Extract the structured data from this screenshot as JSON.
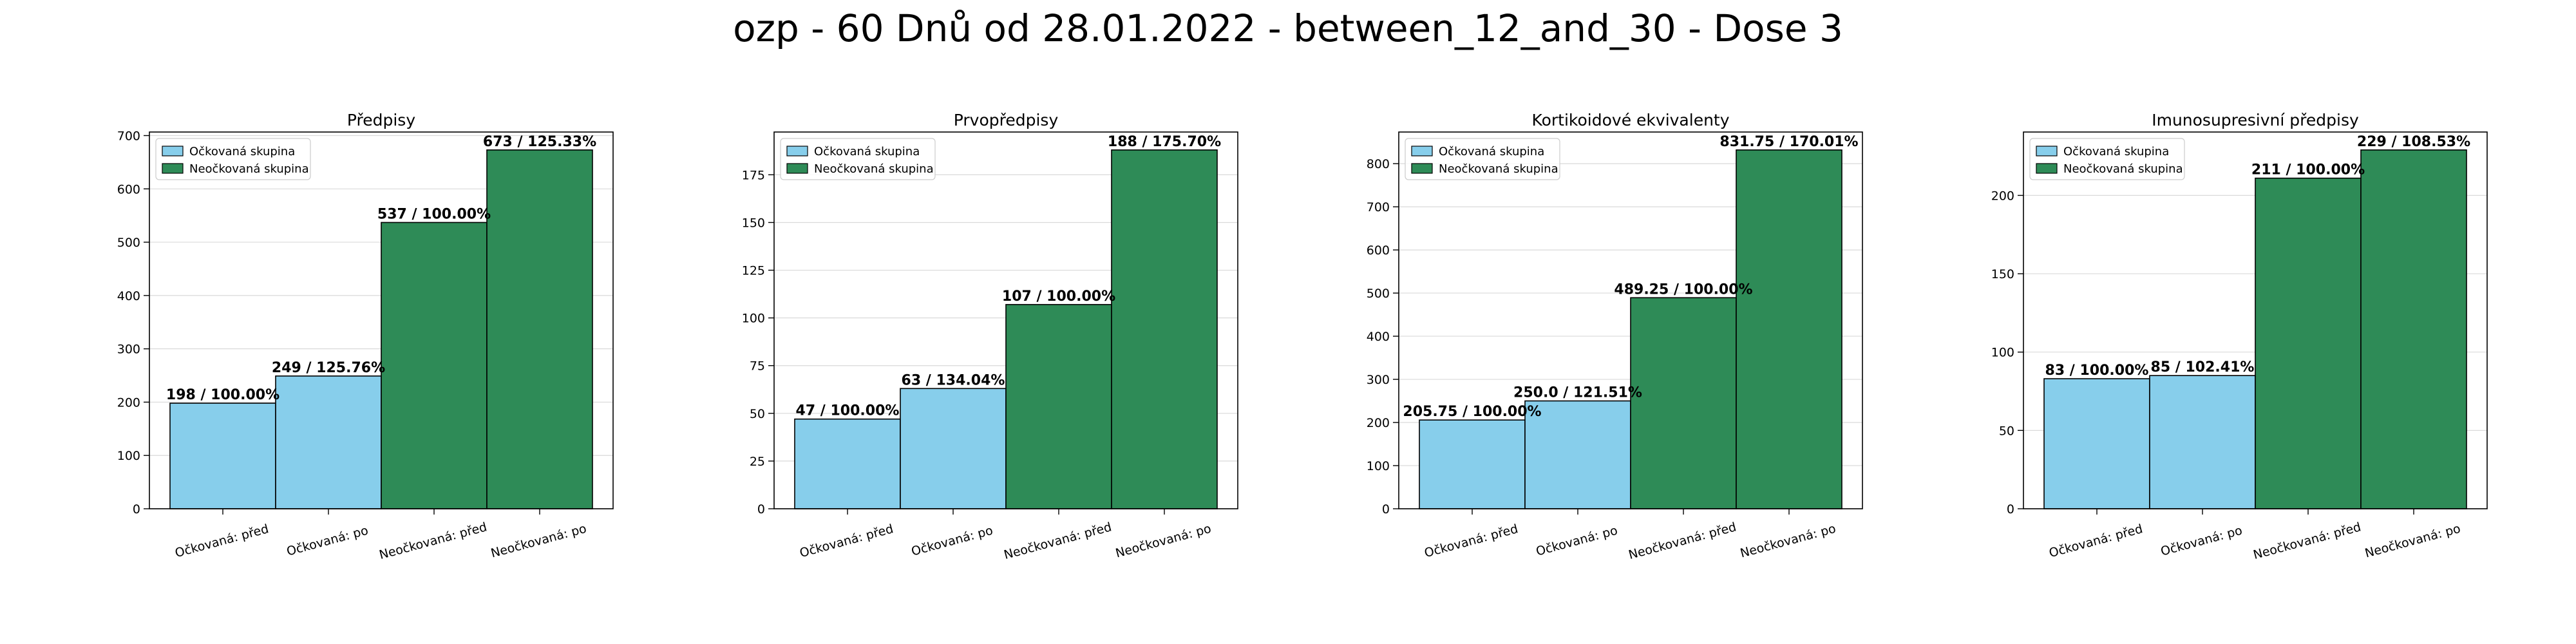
{
  "figure": {
    "title": "ozp - 60 Dnů od 28.01.2022 - between_12_and_30 - Dose 3"
  },
  "colors": {
    "vaccinated": "#87ceeb",
    "unvaccinated": "#2e8b57"
  },
  "chart_data": [
    {
      "type": "bar",
      "title": "Předpisy",
      "categories": [
        "Očkovaná: před",
        "Očkovaná: po",
        "Neočkovaná: před",
        "Neočkovaná: po"
      ],
      "values": [
        198,
        249,
        537,
        673
      ],
      "bar_labels": [
        "198 / 100.00%",
        "249 / 125.76%",
        "537 / 100.00%",
        "673 / 125.33%"
      ],
      "bar_series": [
        0,
        0,
        1,
        1
      ],
      "legend": [
        "Očkovaná skupina",
        "Neočkovaná skupina"
      ],
      "legend_position": "upper-left",
      "ylim": [
        0,
        706.65
      ],
      "yticks": [
        0,
        100,
        200,
        300,
        400,
        500,
        600,
        700
      ],
      "grid": true
    },
    {
      "type": "bar",
      "title": "Prvopředpisy",
      "categories": [
        "Očkovaná: před",
        "Očkovaná: po",
        "Neočkovaná: před",
        "Neočkovaná: po"
      ],
      "values": [
        47,
        63,
        107,
        188
      ],
      "bar_labels": [
        "47 / 100.00%",
        "63 / 134.04%",
        "107 / 100.00%",
        "188 / 175.70%"
      ],
      "bar_series": [
        0,
        0,
        1,
        1
      ],
      "legend": [
        "Očkovaná skupina",
        "Neočkovaná skupina"
      ],
      "legend_position": "upper-left",
      "ylim": [
        0,
        197.4
      ],
      "yticks": [
        0,
        25,
        50,
        75,
        100,
        125,
        150,
        175
      ],
      "grid": true
    },
    {
      "type": "bar",
      "title": "Kortikoidové ekvivalenty",
      "categories": [
        "Očkovaná: před",
        "Očkovaná: po",
        "Neočkovaná: před",
        "Neočkovaná: po"
      ],
      "values": [
        205.75,
        250.0,
        489.25,
        831.75
      ],
      "bar_labels": [
        "205.75 / 100.00%",
        "250.0 / 121.51%",
        "489.25 / 100.00%",
        "831.75 / 170.01%"
      ],
      "bar_series": [
        0,
        0,
        1,
        1
      ],
      "legend": [
        "Očkovaná skupina",
        "Neočkovaná skupina"
      ],
      "legend_position": "upper-left",
      "ylim": [
        0,
        873.34
      ],
      "yticks": [
        0,
        100,
        200,
        300,
        400,
        500,
        600,
        700,
        800
      ],
      "grid": true
    },
    {
      "type": "bar",
      "title": "Imunosupresivní předpisy",
      "categories": [
        "Očkovaná: před",
        "Očkovaná: po",
        "Neočkovaná: před",
        "Neočkovaná: po"
      ],
      "values": [
        83,
        85,
        211,
        229
      ],
      "bar_labels": [
        "83 / 100.00%",
        "85 / 102.41%",
        "211 / 100.00%",
        "229 / 108.53%"
      ],
      "bar_series": [
        0,
        0,
        1,
        1
      ],
      "legend": [
        "Očkovaná skupina",
        "Neočkovaná skupina"
      ],
      "legend_position": "upper-left",
      "ylim": [
        0,
        240.45
      ],
      "yticks": [
        0,
        50,
        100,
        150,
        200
      ],
      "grid": true
    }
  ]
}
